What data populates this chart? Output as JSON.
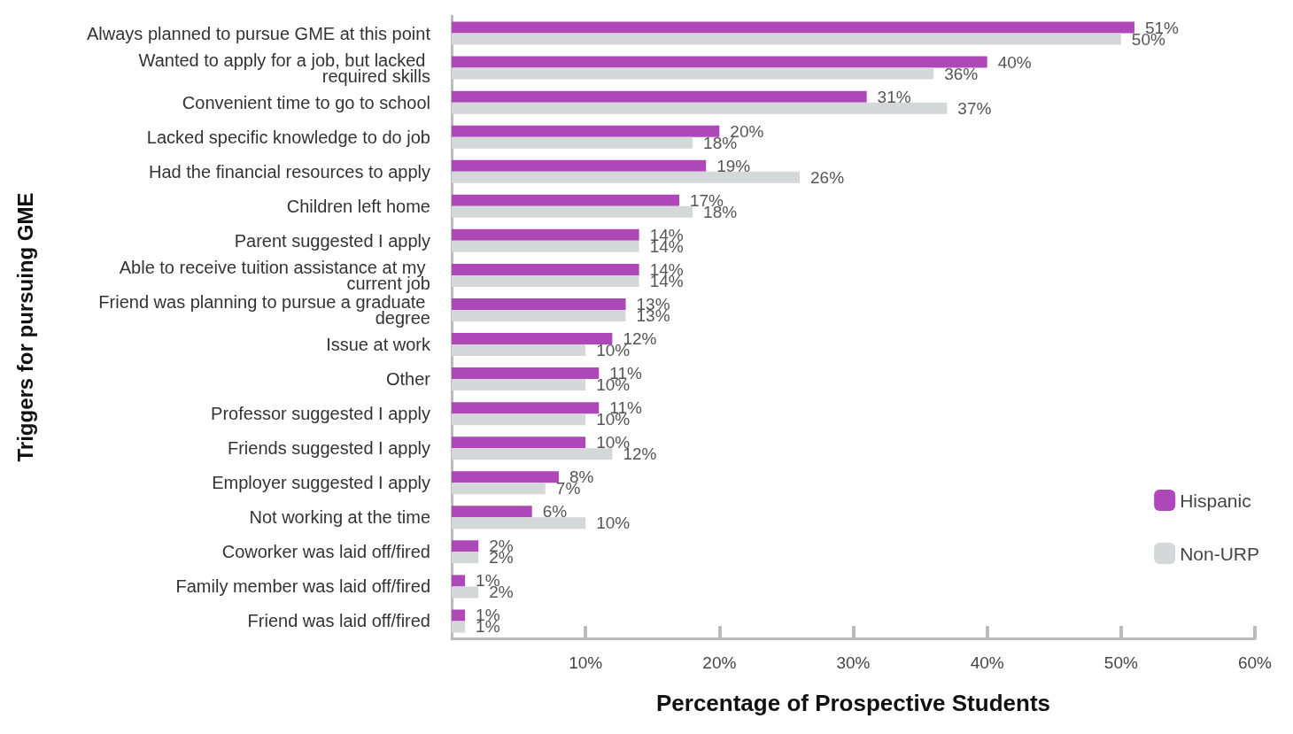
{
  "chart_data": {
    "type": "bar",
    "orientation": "horizontal",
    "xlabel": "Percentage of Prospective Students",
    "ylabel": "Triggers for pursuing GME",
    "categories": [
      "Always planned to pursue GME at this point",
      "Wanted to apply for a job, but lacked required skills",
      "Convenient time to go to school",
      "Lacked specific knowledge to do job",
      "Had the financial resources to apply",
      "Children left home",
      "Parent suggested I apply",
      "Able to receive tuition assistance at my current job",
      "Friend was planning to pursue a graduate degree",
      "Issue at work",
      "Other",
      "Professor suggested I apply",
      "Friends suggested I apply",
      "Employer suggested I apply",
      "Not working at the time",
      "Coworker was laid off/fired",
      "Family member was laid off/fired",
      "Friend was laid off/fired"
    ],
    "series": [
      {
        "name": "Hispanic",
        "color": "#ae47b8",
        "values": [
          51,
          40,
          31,
          20,
          19,
          17,
          14,
          14,
          13,
          12,
          11,
          11,
          10,
          8,
          6,
          2,
          1,
          1
        ],
        "value_labels": [
          "51%",
          "40%",
          "31%",
          "20%",
          "19%",
          "17%",
          "14%",
          "14%",
          "13%",
          "12%",
          "11%",
          "11%",
          "10%",
          "8%",
          "6%",
          "2%",
          "1%",
          "1%"
        ]
      },
      {
        "name": "Non-URP",
        "color": "#d4d8d8",
        "values": [
          50,
          36,
          37,
          18,
          26,
          18,
          14,
          14,
          13,
          10,
          10,
          10,
          12,
          7,
          10,
          2,
          2,
          1
        ],
        "value_labels": [
          "50%",
          "36%",
          "37%",
          "18%",
          "26%",
          "18%",
          "14%",
          "14%",
          "13%",
          "10%",
          "10%",
          "10%",
          "12%",
          "7%",
          "10%",
          "2%",
          "2%",
          "1%"
        ]
      }
    ],
    "xlim": [
      0,
      60
    ],
    "xticks": [
      {
        "value": 10,
        "label": "10%"
      },
      {
        "value": 20,
        "label": "20%"
      },
      {
        "value": 30,
        "label": "30%"
      },
      {
        "value": 40,
        "label": "40%"
      },
      {
        "value": 50,
        "label": "50%"
      },
      {
        "value": 60,
        "label": "60%"
      }
    ],
    "grid": false,
    "legend": "right"
  }
}
